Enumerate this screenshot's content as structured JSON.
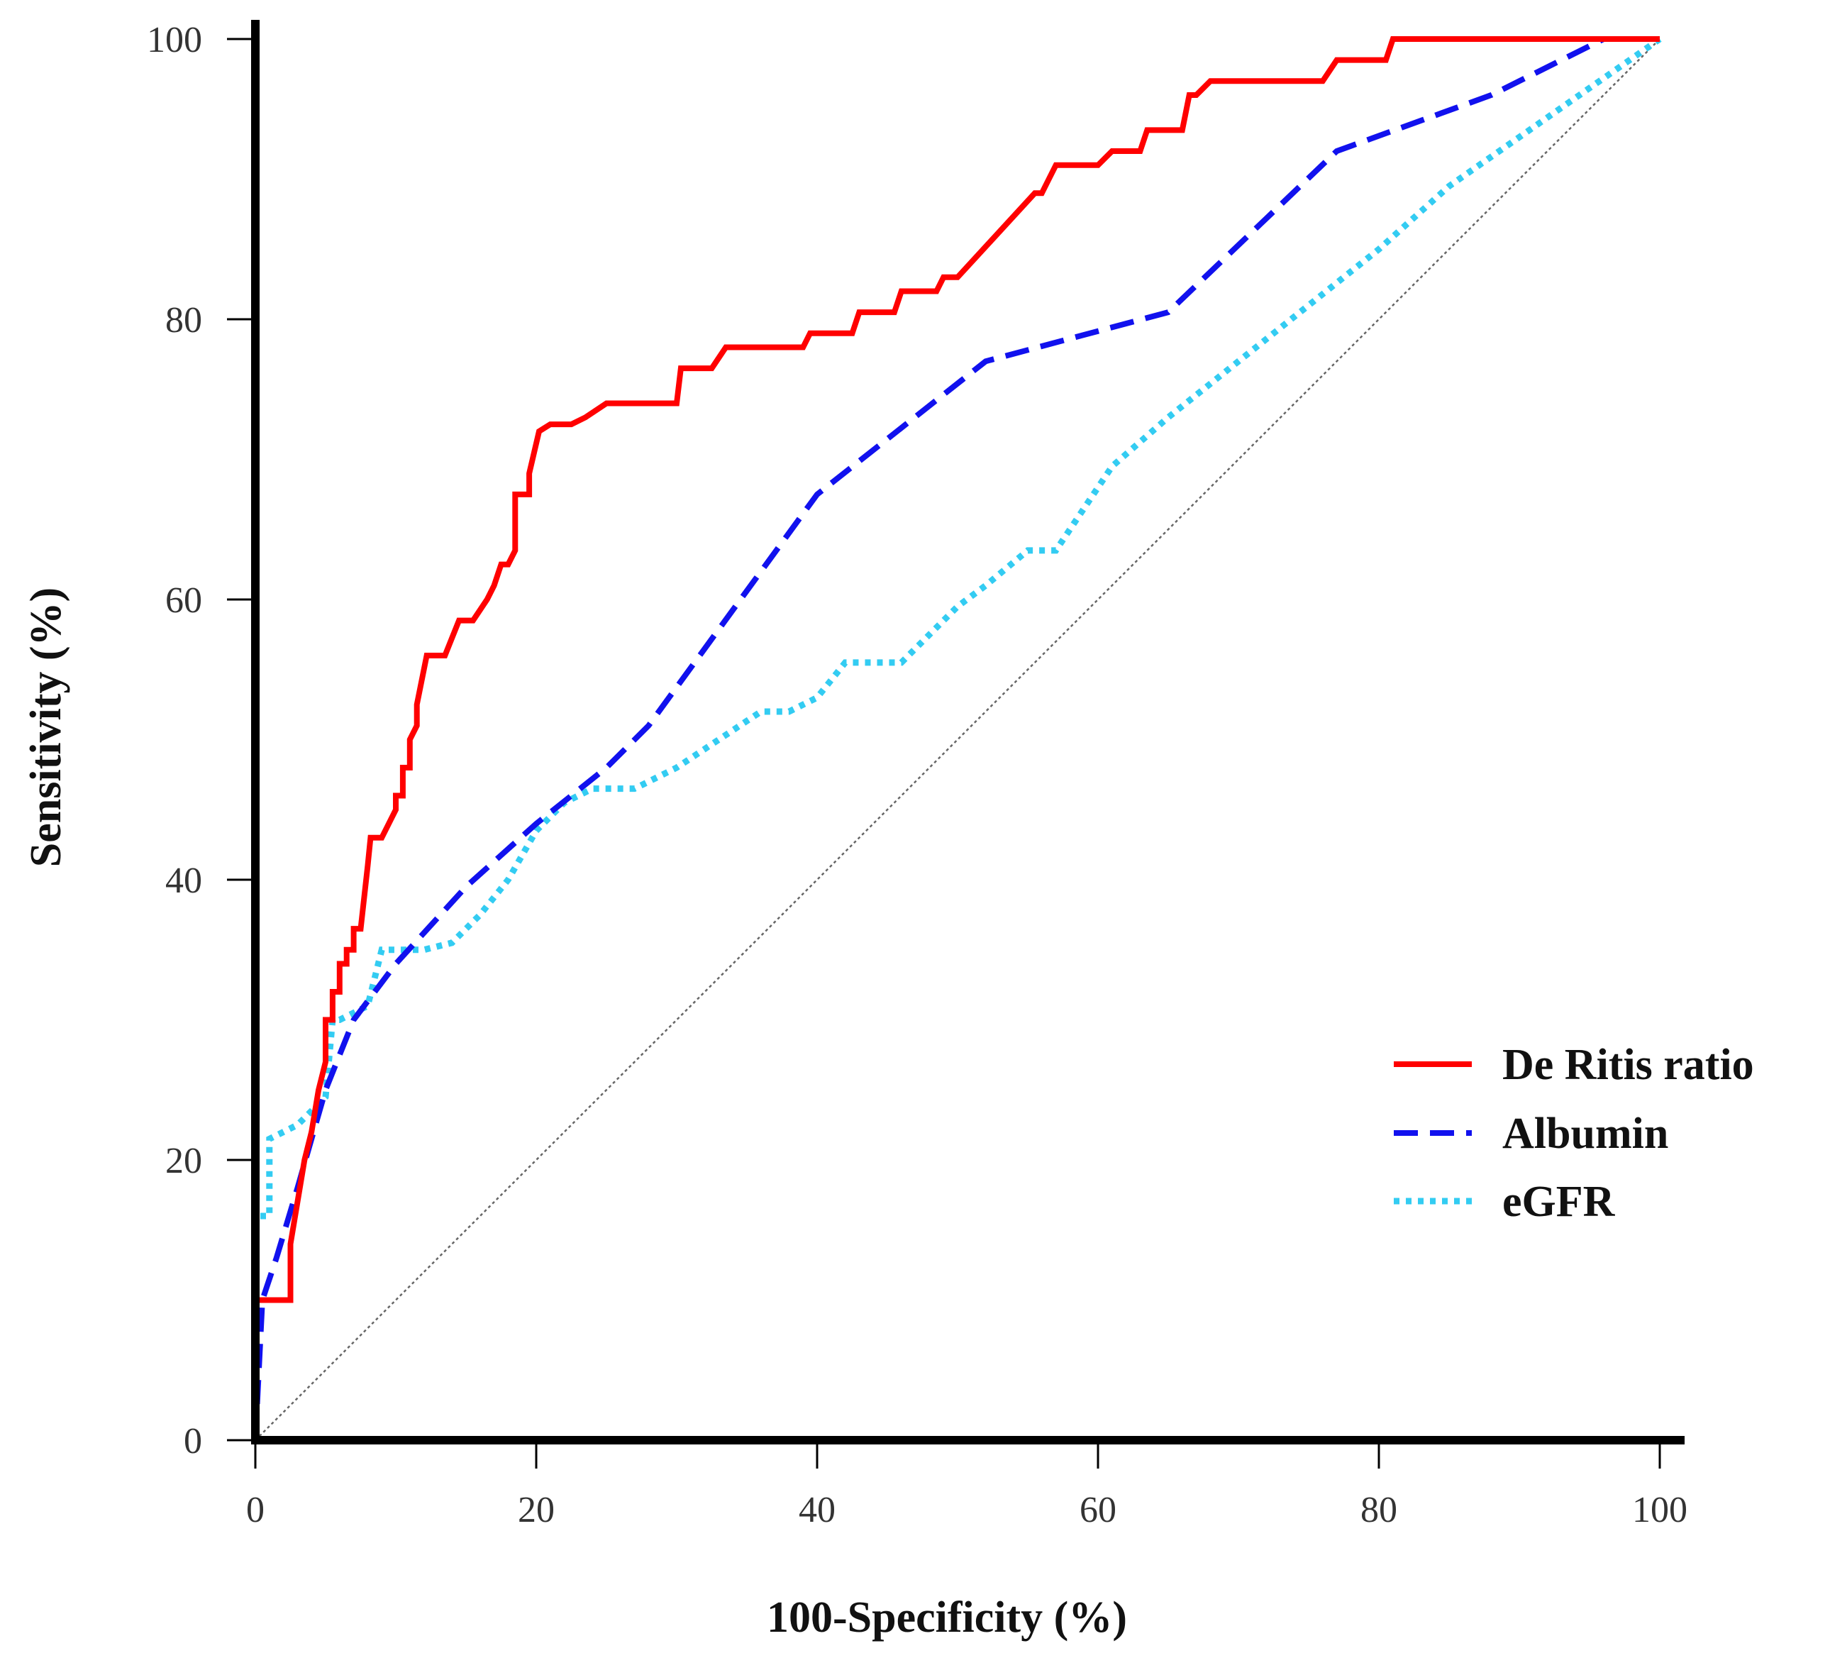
{
  "chart_data": {
    "type": "line",
    "title": "",
    "xlabel": "100-Specificity (%)",
    "ylabel": "Sensitivity (%)",
    "xlim": [
      0,
      100
    ],
    "ylim": [
      0,
      100
    ],
    "x_ticks": [
      "0",
      "20",
      "40",
      "60",
      "80",
      "100"
    ],
    "y_ticks": [
      "0",
      "20",
      "40",
      "60",
      "80",
      "100"
    ],
    "legend_position": "right",
    "grid": false,
    "reference_line": {
      "name": "diagonal",
      "x": [
        0,
        100
      ],
      "y": [
        0,
        100
      ],
      "color": "#666666"
    },
    "series": [
      {
        "name": "De Ritis ratio",
        "color": "#ff0000",
        "style": "solid",
        "x": [
          0,
          0,
          0.8,
          0.8,
          2.5,
          2.5,
          3,
          3.5,
          4,
          4.5,
          5,
          5,
          5.5,
          5.5,
          6,
          6,
          6.5,
          6.5,
          7,
          7,
          7.5,
          8,
          8.2,
          9,
          9.5,
          9.5,
          10,
          10,
          10.5,
          10.5,
          11,
          11,
          11.5,
          11.5,
          12.2,
          13.5,
          14.5,
          15.5,
          16.5,
          17,
          17.5,
          18,
          18.5,
          18.5,
          19,
          19.5,
          19.5,
          20.2,
          21,
          22.5,
          23.5,
          25,
          27,
          30,
          30.3,
          32.5,
          33.5,
          39,
          39.5,
          42.5,
          43,
          45.5,
          46,
          48.5,
          49,
          50,
          55.5,
          56,
          56.5,
          57,
          60,
          61,
          63,
          63.5,
          66,
          66.5,
          67,
          68,
          76,
          77,
          80.5,
          81,
          97,
          97.5,
          100
        ],
        "y": [
          0,
          10,
          10,
          10,
          10,
          14,
          17,
          20,
          22,
          25,
          27,
          30,
          30,
          32,
          32,
          34,
          34,
          35,
          35,
          36.5,
          36.5,
          41,
          43,
          43,
          44,
          44,
          45,
          46,
          46,
          48,
          48,
          50,
          51,
          52.5,
          56,
          56,
          58.5,
          58.5,
          60,
          61,
          62.5,
          62.5,
          63.5,
          67.5,
          67.5,
          67.5,
          69,
          72,
          72.5,
          72.5,
          73,
          74,
          74,
          74,
          76.5,
          76.5,
          78,
          78,
          79,
          79,
          80.5,
          80.5,
          82,
          82,
          83,
          83,
          89,
          89,
          90,
          91,
          91,
          92,
          92,
          93.5,
          93.5,
          96,
          96,
          97,
          97,
          98.5,
          98.5,
          100,
          100,
          100,
          100
        ]
      },
      {
        "name": "Albumin",
        "color": "#1111ee",
        "style": "dashed",
        "x": [
          0,
          0.5,
          1.5,
          3,
          5,
          7,
          10,
          15,
          20,
          25,
          28,
          40,
          52,
          65,
          77,
          88,
          96,
          100
        ],
        "y": [
          0,
          10,
          13,
          18,
          25,
          30,
          34,
          39.5,
          44,
          48,
          51,
          67.5,
          77,
          80.5,
          92,
          96,
          100,
          100
        ]
      },
      {
        "name": "eGFR",
        "color": "#33ccf2",
        "style": "dotted",
        "x": [
          0,
          0,
          1,
          1,
          3,
          5,
          5.5,
          6,
          8,
          9,
          10,
          12,
          14,
          16,
          18,
          20,
          22,
          24,
          27,
          30,
          33,
          36,
          38,
          40,
          42,
          46,
          50,
          52,
          55,
          57,
          59,
          61,
          65,
          70,
          75,
          80,
          85,
          90,
          95,
          100
        ],
        "y": [
          0,
          16,
          16,
          21.5,
          22.5,
          24.5,
          30,
          30,
          31,
          35,
          35,
          35,
          35.5,
          37.5,
          40,
          43.5,
          45.5,
          46.5,
          46.5,
          48,
          50,
          52,
          52,
          53,
          55.5,
          55.5,
          59.5,
          61,
          63.5,
          63.5,
          66.5,
          69.5,
          73,
          77,
          81,
          85,
          89.5,
          93,
          96.5,
          100
        ]
      }
    ]
  }
}
